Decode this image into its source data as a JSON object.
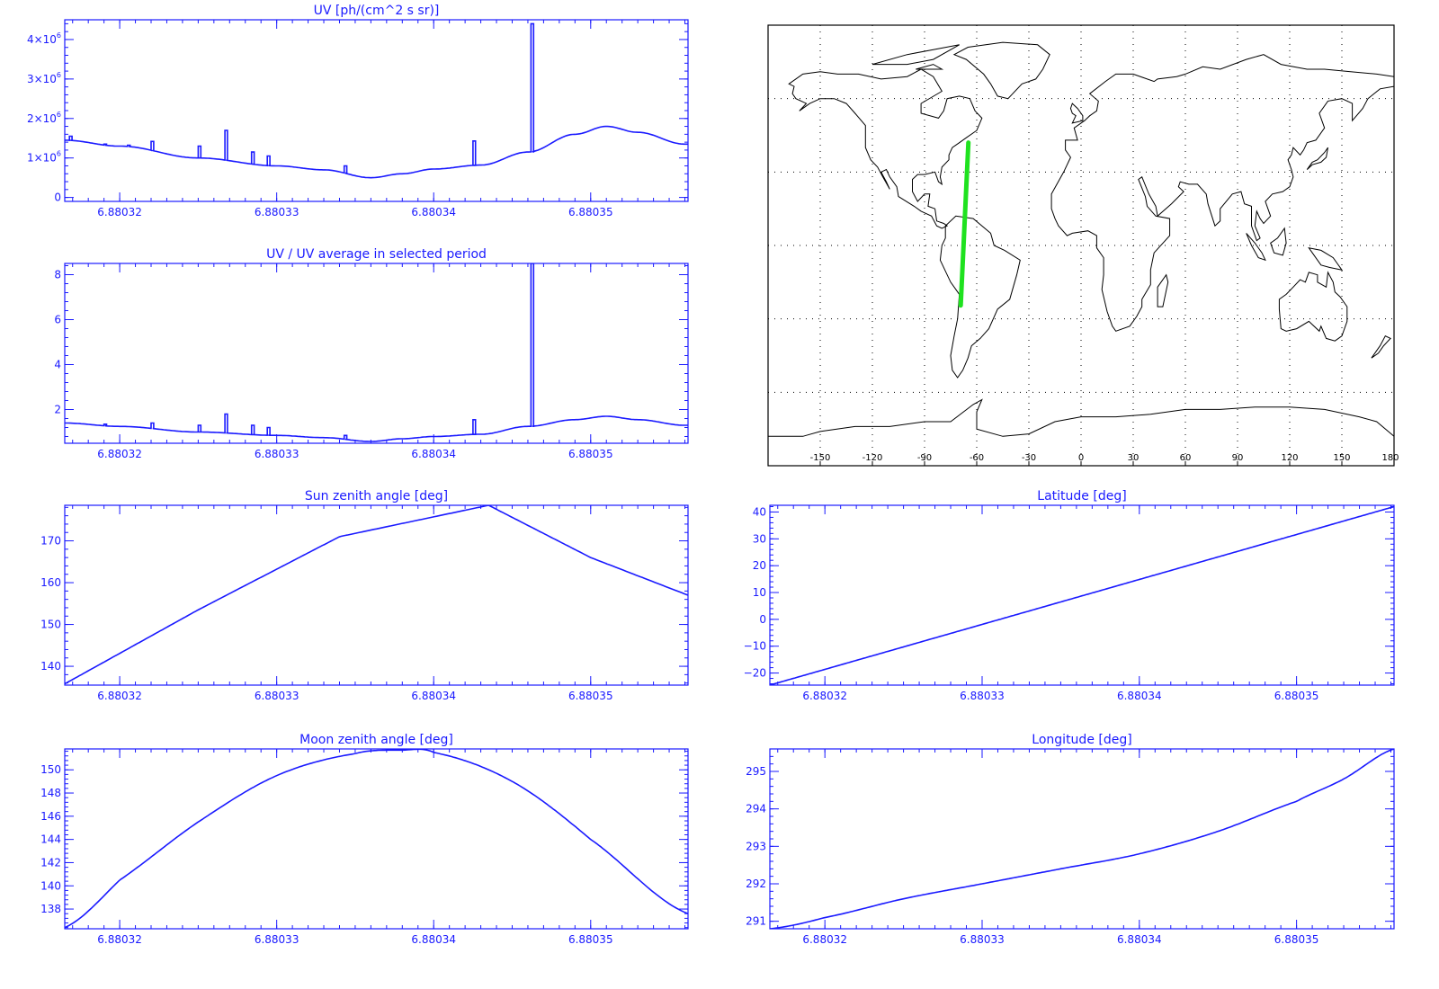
{
  "colors": {
    "axis": "#1a1aff",
    "series": "#1a1aff",
    "track": "#1fe21f",
    "map_line": "#000000",
    "background": "#ffffff"
  },
  "chart_data": [
    {
      "id": "uv",
      "type": "line",
      "title": "UV [ph/(cm^2 s sr)]",
      "xlim": [
        6.8803165,
        6.8803562
      ],
      "ylim": [
        -100000,
        4500000
      ],
      "x_ticks": [
        6.88032,
        6.88033,
        6.88034,
        6.88035
      ],
      "x_tick_labels": [
        "6.88032",
        "6.88033",
        "6.88034",
        "6.88035"
      ],
      "y_ticks": [
        0,
        1000000,
        2000000,
        3000000,
        4000000
      ],
      "y_tick_labels": [
        {
          "mant": "0",
          "exp": ""
        },
        {
          "mant": "1×10",
          "exp": "6"
        },
        {
          "mant": "2×10",
          "exp": "6"
        },
        {
          "mant": "3×10",
          "exp": "6"
        },
        {
          "mant": "4×10",
          "exp": "6"
        }
      ],
      "baseline": {
        "x": [
          6.8803165,
          6.88032,
          6.880325,
          6.88033,
          6.880333,
          6.880336,
          6.880338,
          6.88034,
          6.880343,
          6.880346,
          6.880349,
          6.880351,
          6.880353,
          6.880356
        ],
        "y": [
          1450000,
          1300000,
          1000000,
          800000,
          700000,
          500000,
          600000,
          720000,
          820000,
          1150000,
          1600000,
          1800000,
          1650000,
          1350000
        ]
      },
      "spikes": [
        {
          "x": 6.8803168,
          "y": 1550000
        },
        {
          "x": 6.880319,
          "y": 1350000
        },
        {
          "x": 6.8803205,
          "y": 1320000
        },
        {
          "x": 6.880322,
          "y": 1420000
        },
        {
          "x": 6.880325,
          "y": 1300000
        },
        {
          "x": 6.8803267,
          "y": 1700000
        },
        {
          "x": 6.8803284,
          "y": 1150000
        },
        {
          "x": 6.8803294,
          "y": 1050000
        },
        {
          "x": 6.8803343,
          "y": 800000
        },
        {
          "x": 6.8803425,
          "y": 1430000
        },
        {
          "x": 6.8803462,
          "y": 4400000
        }
      ]
    },
    {
      "id": "ratio",
      "type": "line",
      "title": "UV / UV average in selected period",
      "xlim": [
        6.8803165,
        6.8803562
      ],
      "ylim": [
        0.5,
        8.5
      ],
      "x_ticks": [
        6.88032,
        6.88033,
        6.88034,
        6.88035
      ],
      "x_tick_labels": [
        "6.88032",
        "6.88033",
        "6.88034",
        "6.88035"
      ],
      "y_ticks": [
        2,
        4,
        6,
        8
      ],
      "y_tick_labels": [
        {
          "mant": "2",
          "exp": ""
        },
        {
          "mant": "4",
          "exp": ""
        },
        {
          "mant": "6",
          "exp": ""
        },
        {
          "mant": "8",
          "exp": ""
        }
      ],
      "baseline": {
        "x": [
          6.8803165,
          6.88032,
          6.880325,
          6.88033,
          6.880333,
          6.880336,
          6.880338,
          6.88034,
          6.880343,
          6.880346,
          6.880349,
          6.880351,
          6.880353,
          6.880356
        ],
        "y": [
          1.4,
          1.25,
          1.0,
          0.85,
          0.75,
          0.58,
          0.7,
          0.8,
          0.9,
          1.25,
          1.55,
          1.7,
          1.55,
          1.3
        ]
      },
      "spikes": [
        {
          "x": 6.880319,
          "y": 1.35
        },
        {
          "x": 6.880322,
          "y": 1.4
        },
        {
          "x": 6.880325,
          "y": 1.3
        },
        {
          "x": 6.8803267,
          "y": 1.8
        },
        {
          "x": 6.8803284,
          "y": 1.3
        },
        {
          "x": 6.8803294,
          "y": 1.2
        },
        {
          "x": 6.8803343,
          "y": 0.85
        },
        {
          "x": 6.8803425,
          "y": 1.55
        },
        {
          "x": 6.8803462,
          "y": 8.5
        }
      ]
    },
    {
      "id": "sun",
      "type": "line",
      "title": "Sun zenith angle [deg]",
      "xlim": [
        6.8803165,
        6.8803562
      ],
      "ylim": [
        135.5,
        178.5
      ],
      "x_ticks": [
        6.88032,
        6.88033,
        6.88034,
        6.88035
      ],
      "x_tick_labels": [
        "6.88032",
        "6.88033",
        "6.88034",
        "6.88035"
      ],
      "y_ticks": [
        140,
        150,
        160,
        170
      ],
      "y_tick_labels": [
        {
          "mant": "140",
          "exp": ""
        },
        {
          "mant": "150",
          "exp": ""
        },
        {
          "mant": "160",
          "exp": ""
        },
        {
          "mant": "170",
          "exp": ""
        }
      ],
      "x": [
        6.8803165,
        6.880325,
        6.880334,
        6.8803435,
        6.88035,
        6.8803562
      ],
      "y": [
        135.8,
        153.5,
        171.0,
        178.5,
        166.0,
        157.0
      ]
    },
    {
      "id": "moon",
      "type": "line",
      "title": "Moon zenith angle [deg]",
      "xlim": [
        6.8803165,
        6.8803562
      ],
      "ylim": [
        136.3,
        151.8
      ],
      "x_ticks": [
        6.88032,
        6.88033,
        6.88034,
        6.88035
      ],
      "x_tick_labels": [
        "6.88032",
        "6.88033",
        "6.88034",
        "6.88035"
      ],
      "y_ticks": [
        138,
        140,
        142,
        144,
        146,
        148,
        150
      ],
      "y_tick_labels": [
        {
          "mant": "138",
          "exp": ""
        },
        {
          "mant": "140",
          "exp": ""
        },
        {
          "mant": "142",
          "exp": ""
        },
        {
          "mant": "144",
          "exp": ""
        },
        {
          "mant": "146",
          "exp": ""
        },
        {
          "mant": "148",
          "exp": ""
        },
        {
          "mant": "150",
          "exp": ""
        }
      ],
      "x": [
        6.8803165,
        6.88032,
        6.880325,
        6.88033,
        6.880335,
        6.880338,
        6.88034,
        6.880345,
        6.88035,
        6.8803562
      ],
      "y": [
        136.4,
        140.5,
        145.5,
        149.5,
        151.4,
        151.7,
        151.5,
        149.0,
        144.0,
        137.6
      ]
    },
    {
      "id": "lat",
      "type": "line",
      "title": "Latitude [deg]",
      "xlim": [
        6.8803165,
        6.8803562
      ],
      "ylim": [
        -24.5,
        42.5
      ],
      "x_ticks": [
        6.88032,
        6.88033,
        6.88034,
        6.88035
      ],
      "x_tick_labels": [
        "6.88032",
        "6.88033",
        "6.88034",
        "6.88035"
      ],
      "y_ticks": [
        -20,
        -10,
        0,
        10,
        20,
        30,
        40
      ],
      "y_tick_labels": [
        {
          "mant": "−20",
          "exp": ""
        },
        {
          "mant": "−10",
          "exp": ""
        },
        {
          "mant": "0",
          "exp": ""
        },
        {
          "mant": "10",
          "exp": ""
        },
        {
          "mant": "20",
          "exp": ""
        },
        {
          "mant": "30",
          "exp": ""
        },
        {
          "mant": "40",
          "exp": ""
        }
      ],
      "x": [
        6.8803165,
        6.8803562
      ],
      "y": [
        -24.5,
        42.0
      ]
    },
    {
      "id": "lon",
      "type": "line",
      "title": "Longitude [deg]",
      "xlim": [
        6.8803165,
        6.8803562
      ],
      "ylim": [
        290.8,
        295.6
      ],
      "x_ticks": [
        6.88032,
        6.88033,
        6.88034,
        6.88035
      ],
      "x_tick_labels": [
        "6.88032",
        "6.88033",
        "6.88034",
        "6.88035"
      ],
      "y_ticks": [
        291,
        292,
        293,
        294,
        295
      ],
      "y_tick_labels": [
        {
          "mant": "291",
          "exp": ""
        },
        {
          "mant": "292",
          "exp": ""
        },
        {
          "mant": "293",
          "exp": ""
        },
        {
          "mant": "294",
          "exp": ""
        },
        {
          "mant": "295",
          "exp": ""
        }
      ],
      "x": [
        6.8803165,
        6.88032,
        6.880325,
        6.88033,
        6.880335,
        6.88034,
        6.880345,
        6.88035,
        6.880353,
        6.8803562
      ],
      "y": [
        290.8,
        291.1,
        291.6,
        292.0,
        292.4,
        292.8,
        293.4,
        294.2,
        294.8,
        295.6
      ]
    }
  ],
  "map": {
    "xlim": [
      -180,
      180
    ],
    "ylim": [
      -90,
      90
    ],
    "x_ticks": [
      -150,
      -120,
      -90,
      -60,
      -30,
      0,
      30,
      60,
      90,
      120,
      150,
      180
    ],
    "x_tick_labels": [
      "-150",
      "-120",
      "-90",
      "-60",
      "-30",
      "0",
      "30",
      "60",
      "90",
      "120",
      "150",
      "180"
    ],
    "grid_lats": [
      -60,
      -30,
      0,
      30,
      60
    ],
    "track": {
      "lon": [
        -64.8,
        -69.2
      ],
      "lat": [
        42.0,
        -24.5
      ]
    }
  }
}
